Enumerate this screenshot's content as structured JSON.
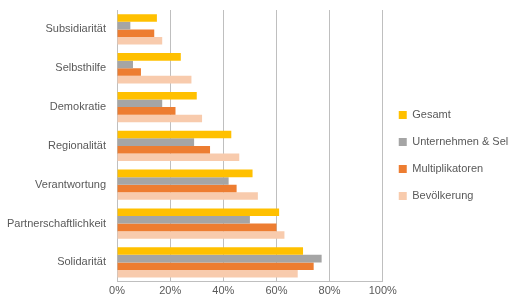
{
  "chart_data": {
    "type": "bar",
    "orientation": "horizontal",
    "categories": [
      "Subsidiarität",
      "Selbsthilfe",
      "Demokratie",
      "Regionalität",
      "Verantwortung",
      "Partnerschaftlichkeit",
      "Solidarität"
    ],
    "series": [
      {
        "name": "Gesamt",
        "color": "#ffc000",
        "values": [
          15,
          24,
          30,
          43,
          51,
          61,
          70
        ]
      },
      {
        "name": "Unternehmen & Selbständige",
        "color": "#a5a5a5",
        "values": [
          5,
          6,
          17,
          29,
          42,
          50,
          77
        ]
      },
      {
        "name": "Multiplikatoren",
        "color": "#ed7d31",
        "values": [
          14,
          9,
          22,
          35,
          45,
          60,
          74
        ]
      },
      {
        "name": "Bevölkerung",
        "color": "#f8cbad",
        "values": [
          17,
          28,
          32,
          46,
          53,
          63,
          68
        ]
      }
    ],
    "xlim": [
      0,
      100
    ],
    "xticks": [
      {
        "value": 0,
        "label": "0%"
      },
      {
        "value": 20,
        "label": "20%"
      },
      {
        "value": 40,
        "label": "40%"
      },
      {
        "value": 60,
        "label": "60%"
      },
      {
        "value": 80,
        "label": "80%"
      },
      {
        "value": 100,
        "label": "100%"
      }
    ],
    "grid": true,
    "legend": "right"
  }
}
